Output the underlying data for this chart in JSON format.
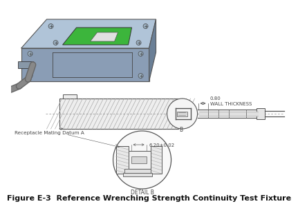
{
  "title": "Figure E-3  Reference Wrenching Strength Continuity Test Fixture",
  "title_fontsize": 8.0,
  "title_fontweight": "bold",
  "bg_color": "#ffffff",
  "label_receptacle": "Receptacle Mating Datum A",
  "label_wall": "0.80\nWALL THICKNESS",
  "label_dim": "6.20±0.02",
  "label_detail": "DETAIL B",
  "label_b": "B",
  "annotation_color": "#444444",
  "line_color": "#555555",
  "box_3d_front": "#8a9db5",
  "box_3d_top": "#b0c4d8",
  "box_3d_right": "#6a7f96",
  "green_fill": "#3cb53c",
  "white_usb": "#e0e0e0",
  "cable_color": "#666666",
  "hatch_color": "#999999"
}
